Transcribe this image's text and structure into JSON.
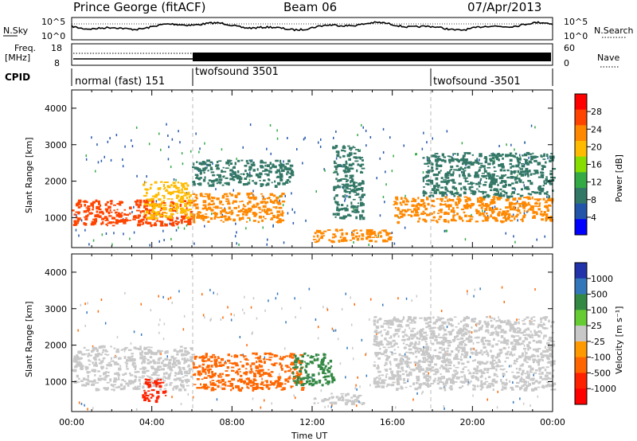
{
  "header": {
    "station": "Prince George (fitACF)",
    "beam": "Beam 06",
    "date": "07/Apr/2013"
  },
  "strips": {
    "nsky_label": "N.Sky",
    "nsky_ticks": [
      "10^5",
      "10^0"
    ],
    "nsearch_label": "N.Search",
    "nsearch_ticks": [
      "10^5",
      "10^0"
    ],
    "freq_label_1": "Freq.",
    "freq_label_2": "[MHz]",
    "freq_ticks": [
      "18",
      "8"
    ],
    "nave_label": "Nave",
    "nave_ticks": [
      "60",
      "0"
    ],
    "cpid_label": "CPID",
    "cpid_segments": [
      {
        "label": "normal (fast) 151",
        "start": "00:00"
      },
      {
        "label": "twofsound 3501",
        "start": "06:00"
      },
      {
        "label": "twofsound -3501",
        "start": "18:00"
      }
    ]
  },
  "panels": {
    "ylabel": "Slant Range [km]",
    "yticks": [
      "4000",
      "3000",
      "2000",
      "1000"
    ],
    "xticks": [
      "00:00",
      "04:00",
      "08:00",
      "12:00",
      "16:00",
      "20:00",
      "00:00"
    ],
    "xlabel": "Time UT"
  },
  "colorbars": {
    "power": {
      "label": "Power [dB]",
      "ticks": [
        "28",
        "24",
        "20",
        "16",
        "12",
        "8",
        "4"
      ],
      "colors": [
        "#ff0000",
        "#ff4400",
        "#ff8800",
        "#ffbb00",
        "#88dd00",
        "#33aa44",
        "#337766",
        "#2255aa",
        "#0000ff"
      ]
    },
    "velocity": {
      "label": "Velocity [m s⁻¹]",
      "ticks": [
        "1000",
        "500",
        "100",
        "25",
        "-25",
        "-100",
        "-500",
        "-1000"
      ],
      "colors": [
        "#2233aa",
        "#3377bb",
        "#338844",
        "#66cc33",
        "#c8c8c8",
        "#ff9900",
        "#ff6600",
        "#ff2200",
        "#ff0000"
      ]
    }
  },
  "chart_data": [
    {
      "type": "heatmap",
      "title": "Power",
      "ylabel": "Slant Range [km]",
      "xlabel": "Time UT",
      "ylim": [
        180,
        4500
      ],
      "xlim": [
        "00:00",
        "24:00"
      ],
      "colorbar_label": "Power [dB]",
      "colorbar_range": [
        0,
        30
      ],
      "features": [
        {
          "t_start": "00:00",
          "t_end": "06:00",
          "range_min": 800,
          "range_max": 1500,
          "value": 28
        },
        {
          "t_start": "03:30",
          "t_end": "06:00",
          "range_min": 1000,
          "range_max": 2000,
          "value": 20
        },
        {
          "t_start": "06:00",
          "t_end": "10:30",
          "range_min": 900,
          "range_max": 1700,
          "value": 24
        },
        {
          "t_start": "06:00",
          "t_end": "11:00",
          "range_min": 1900,
          "range_max": 2600,
          "value": 8
        },
        {
          "t_start": "12:00",
          "t_end": "16:00",
          "range_min": 350,
          "range_max": 700,
          "value": 22
        },
        {
          "t_start": "13:00",
          "t_end": "14:30",
          "range_min": 1000,
          "range_max": 3000,
          "value": 6
        },
        {
          "t_start": "16:00",
          "t_end": "24:00",
          "range_min": 900,
          "range_max": 1600,
          "value": 24
        },
        {
          "t_start": "17:30",
          "t_end": "24:00",
          "range_min": 1600,
          "range_max": 2800,
          "value": 8
        }
      ]
    },
    {
      "type": "heatmap",
      "title": "Velocity",
      "ylabel": "Slant Range [km]",
      "xlabel": "Time UT",
      "ylim": [
        180,
        4500
      ],
      "xlim": [
        "00:00",
        "24:00"
      ],
      "colorbar_label": "Velocity [m s⁻¹]",
      "colorbar_range": [
        -1000,
        1000
      ],
      "features": [
        {
          "t_start": "00:00",
          "t_end": "06:00",
          "range_min": 800,
          "range_max": 2000,
          "value": 0
        },
        {
          "t_start": "03:30",
          "t_end": "04:40",
          "range_min": 500,
          "range_max": 1100,
          "value": -800
        },
        {
          "t_start": "06:00",
          "t_end": "11:30",
          "range_min": 800,
          "range_max": 1800,
          "value": -500
        },
        {
          "t_start": "11:00",
          "t_end": "13:00",
          "range_min": 900,
          "range_max": 1800,
          "value": 500
        },
        {
          "t_start": "12:00",
          "t_end": "14:30",
          "range_min": 400,
          "range_max": 700,
          "value": 100
        },
        {
          "t_start": "15:00",
          "t_end": "24:00",
          "range_min": 800,
          "range_max": 2800,
          "value": 0
        }
      ]
    }
  ]
}
